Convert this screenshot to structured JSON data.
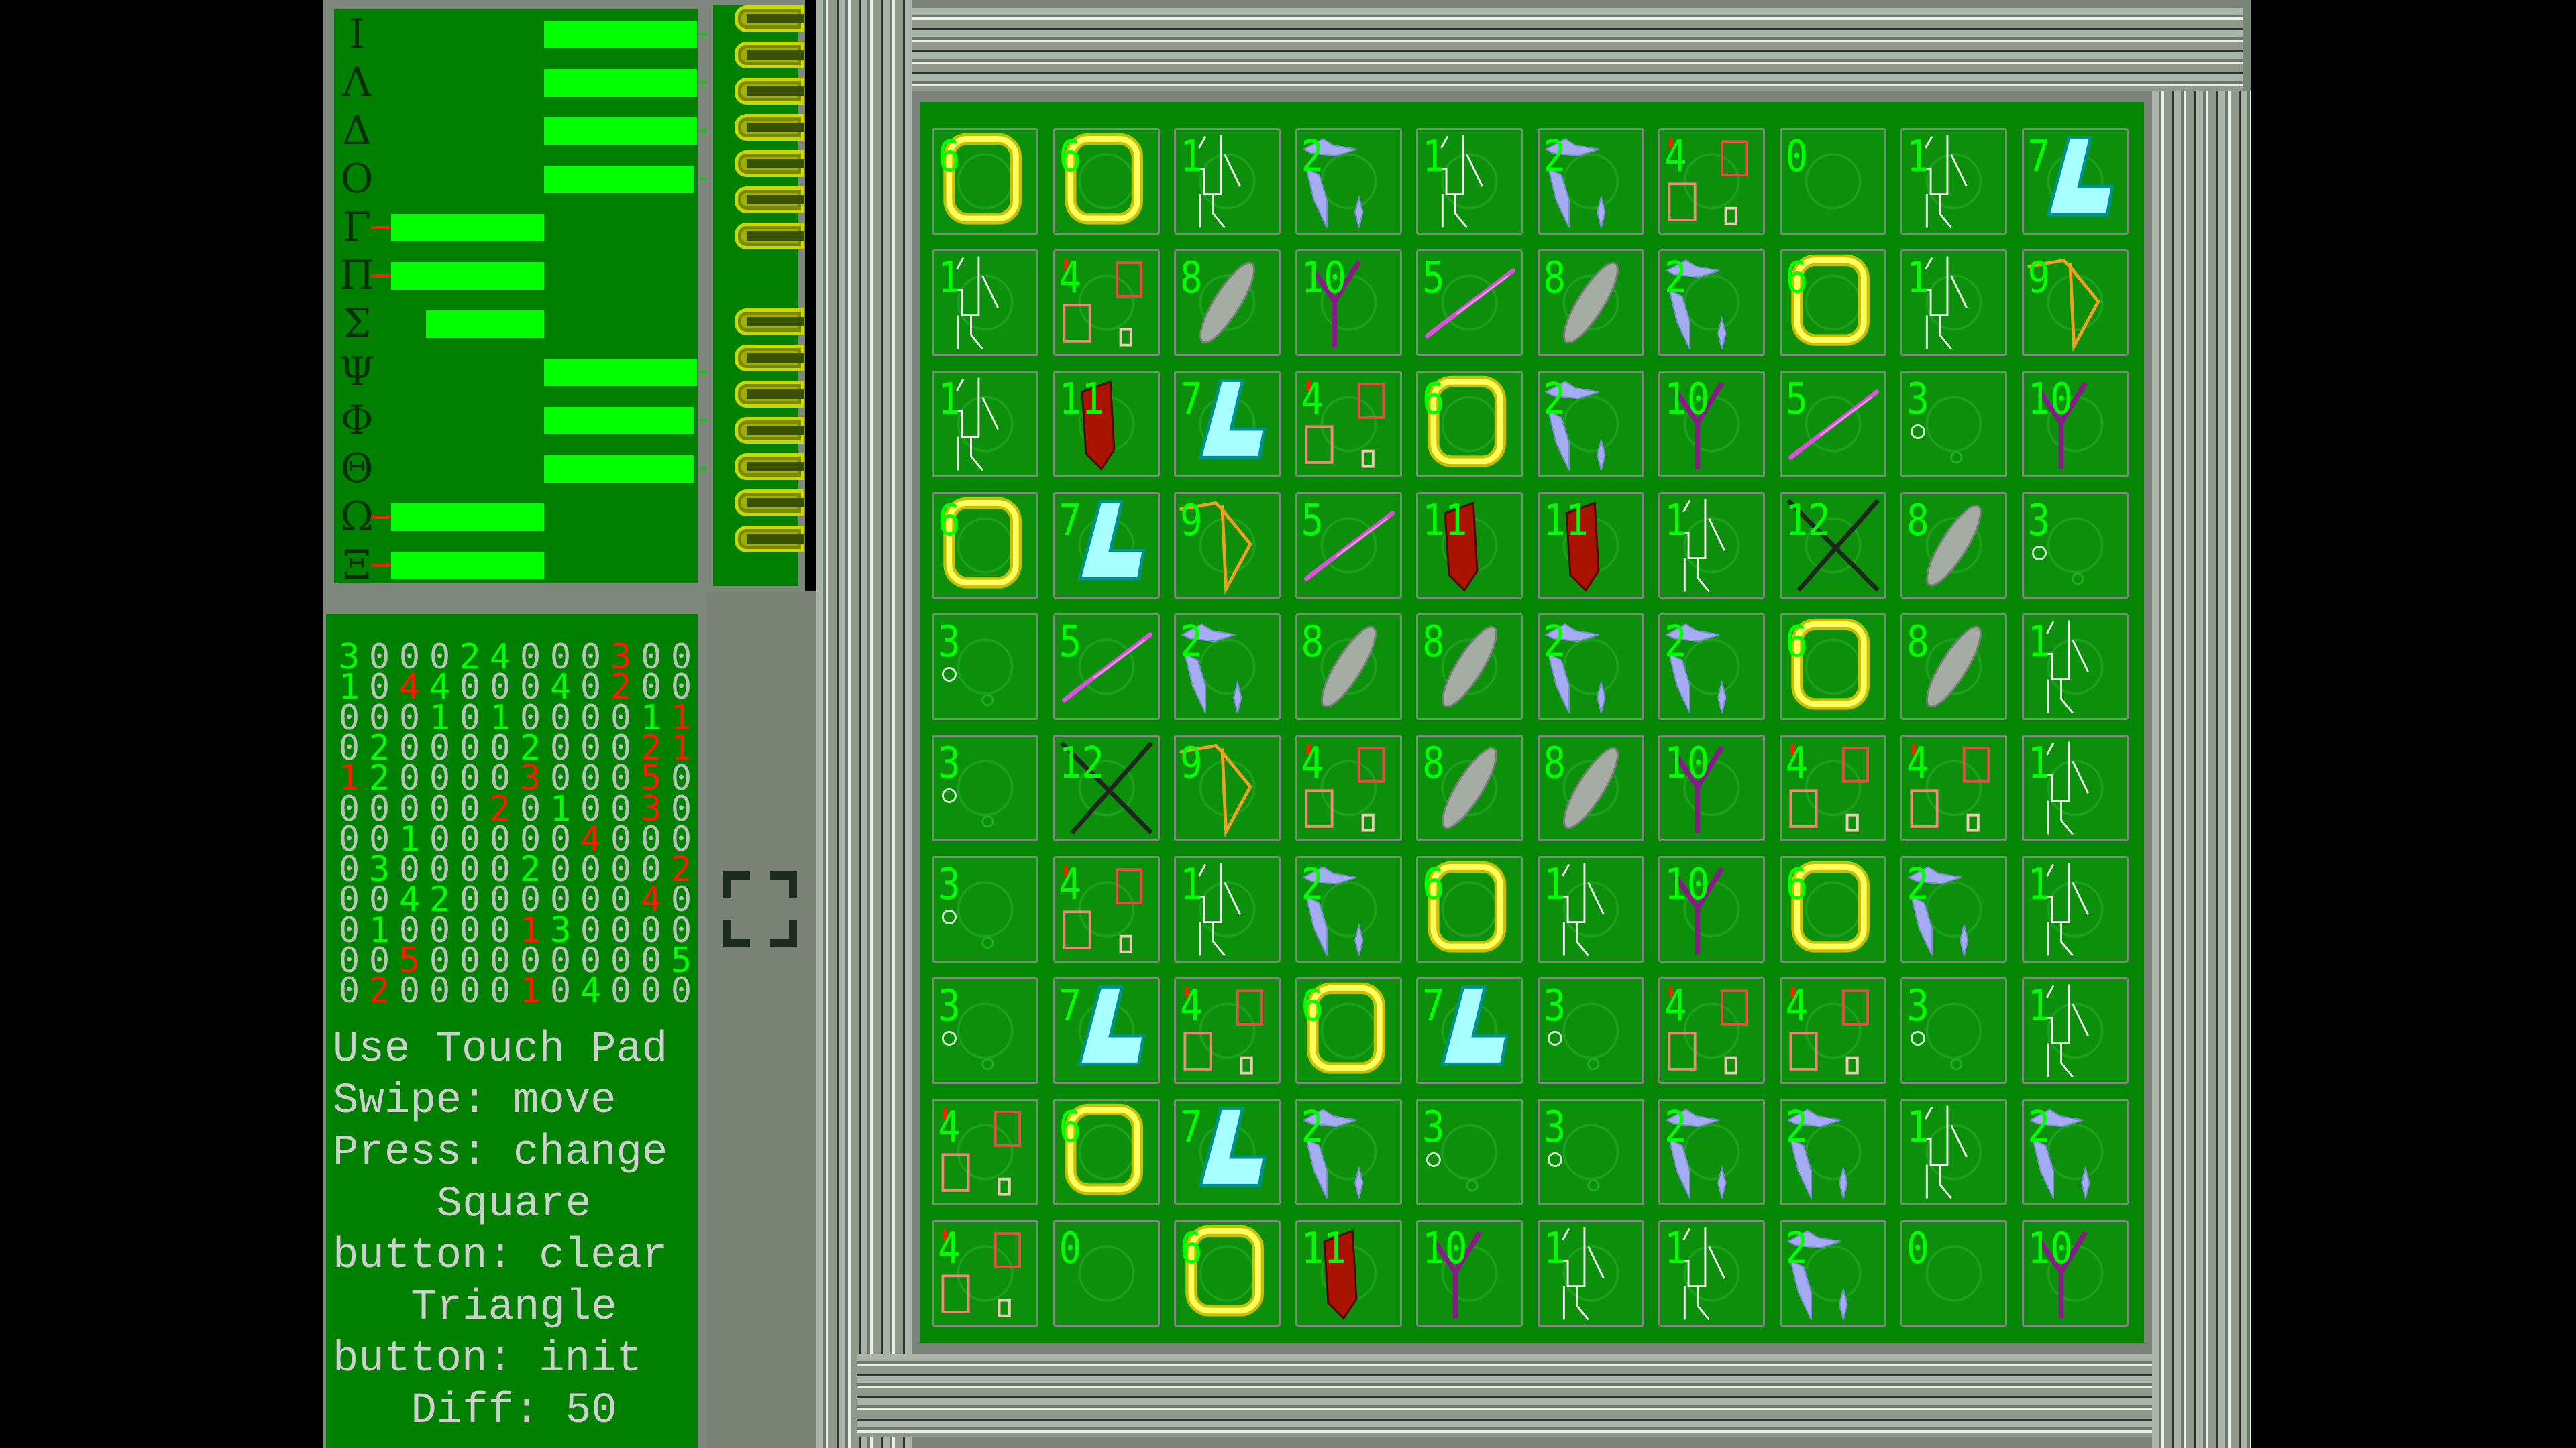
{
  "stats_panel": {
    "rows": [
      {
        "label": "Ι",
        "level": 1.0,
        "indicator": "plus"
      },
      {
        "label": "Λ",
        "level": 1.0,
        "indicator": "plus"
      },
      {
        "label": "Δ",
        "level": 1.0,
        "indicator": "plus"
      },
      {
        "label": "Ο",
        "level": 0.98,
        "indicator": "plus"
      },
      {
        "label": "Γ",
        "level": -1.0,
        "indicator": "minus"
      },
      {
        "label": "Π",
        "level": -1.0,
        "indicator": "minus"
      },
      {
        "label": "Σ",
        "level": -0.77,
        "indicator": "none"
      },
      {
        "label": "Ψ",
        "level": 1.0,
        "indicator": "plus"
      },
      {
        "label": "Φ",
        "level": 0.98,
        "indicator": "plus"
      },
      {
        "label": "Θ",
        "level": 0.98,
        "indicator": "plus"
      },
      {
        "label": "Ω",
        "level": -1.0,
        "indicator": "minus"
      },
      {
        "label": "Ξ",
        "level": -1.0,
        "indicator": "minus"
      }
    ]
  },
  "slot_column": {
    "groups": [
      7,
      7
    ]
  },
  "counts_grid": {
    "values": [
      [
        3,
        0,
        0,
        0,
        2,
        4,
        0,
        0,
        0,
        3,
        0,
        0
      ],
      [
        1,
        0,
        4,
        4,
        0,
        0,
        0,
        4,
        0,
        2,
        0,
        0
      ],
      [
        0,
        0,
        0,
        1,
        0,
        1,
        0,
        0,
        0,
        0,
        1,
        1
      ],
      [
        0,
        2,
        0,
        0,
        0,
        0,
        2,
        0,
        0,
        0,
        2,
        1
      ],
      [
        1,
        2,
        0,
        0,
        0,
        0,
        3,
        0,
        0,
        0,
        5,
        0
      ],
      [
        0,
        0,
        0,
        0,
        0,
        2,
        0,
        1,
        0,
        0,
        3,
        0
      ],
      [
        0,
        0,
        1,
        0,
        0,
        0,
        0,
        0,
        4,
        0,
        0,
        0
      ],
      [
        0,
        3,
        0,
        0,
        0,
        0,
        2,
        0,
        0,
        0,
        0,
        2
      ],
      [
        0,
        0,
        4,
        2,
        0,
        0,
        0,
        0,
        0,
        0,
        4,
        0
      ],
      [
        0,
        1,
        0,
        0,
        0,
        0,
        1,
        3,
        0,
        0,
        0,
        0
      ],
      [
        0,
        0,
        5,
        0,
        0,
        0,
        0,
        0,
        0,
        0,
        0,
        5
      ],
      [
        0,
        2,
        0,
        0,
        0,
        0,
        1,
        0,
        4,
        0,
        0,
        0
      ]
    ],
    "colors": [
      [
        "green",
        "gray",
        "gray",
        "gray",
        "green",
        "green",
        "gray",
        "gray",
        "gray",
        "red",
        "gray",
        "gray"
      ],
      [
        "green",
        "gray",
        "red",
        "green",
        "gray",
        "gray",
        "gray",
        "green",
        "gray",
        "red",
        "gray",
        "gray"
      ],
      [
        "gray",
        "gray",
        "gray",
        "green",
        "gray",
        "green",
        "gray",
        "gray",
        "gray",
        "gray",
        "green",
        "red"
      ],
      [
        "gray",
        "green",
        "gray",
        "gray",
        "gray",
        "gray",
        "green",
        "gray",
        "gray",
        "gray",
        "red",
        "red"
      ],
      [
        "red",
        "green",
        "gray",
        "gray",
        "gray",
        "gray",
        "red",
        "gray",
        "gray",
        "gray",
        "red",
        "gray"
      ],
      [
        "gray",
        "gray",
        "gray",
        "gray",
        "gray",
        "red",
        "gray",
        "green",
        "gray",
        "gray",
        "red",
        "gray"
      ],
      [
        "gray",
        "gray",
        "green",
        "gray",
        "gray",
        "gray",
        "gray",
        "gray",
        "red",
        "gray",
        "gray",
        "gray"
      ],
      [
        "gray",
        "green",
        "gray",
        "gray",
        "gray",
        "gray",
        "green",
        "gray",
        "gray",
        "gray",
        "gray",
        "red"
      ],
      [
        "gray",
        "gray",
        "green",
        "green",
        "gray",
        "gray",
        "gray",
        "gray",
        "gray",
        "gray",
        "red",
        "gray"
      ],
      [
        "gray",
        "green",
        "gray",
        "gray",
        "gray",
        "gray",
        "red",
        "green",
        "gray",
        "gray",
        "gray",
        "gray"
      ],
      [
        "gray",
        "gray",
        "red",
        "gray",
        "gray",
        "gray",
        "gray",
        "gray",
        "gray",
        "gray",
        "gray",
        "green"
      ],
      [
        "gray",
        "red",
        "gray",
        "gray",
        "gray",
        "gray",
        "red",
        "gray",
        "green",
        "gray",
        "gray",
        "gray"
      ]
    ]
  },
  "instructions": {
    "lines": [
      {
        "text": "Use Touch Pad",
        "align": "left"
      },
      {
        "text": "Swipe: move",
        "align": "left"
      },
      {
        "text": "Press: change",
        "align": "left"
      },
      {
        "text": "Square",
        "align": "center"
      },
      {
        "text": "button: clear",
        "align": "left"
      },
      {
        "text": "Triangle",
        "align": "center"
      },
      {
        "text": "button: init",
        "align": "left"
      },
      {
        "text": "Diff: 50",
        "align": "center"
      }
    ]
  },
  "board": {
    "tiles": [
      [
        6,
        6,
        1,
        2,
        1,
        2,
        4,
        0,
        1,
        7
      ],
      [
        1,
        4,
        8,
        10,
        5,
        8,
        2,
        6,
        1,
        9
      ],
      [
        1,
        11,
        7,
        4,
        6,
        2,
        10,
        5,
        3,
        10
      ],
      [
        6,
        7,
        9,
        5,
        11,
        11,
        1,
        12,
        8,
        3
      ],
      [
        3,
        5,
        2,
        8,
        8,
        2,
        2,
        6,
        8,
        1
      ],
      [
        3,
        12,
        9,
        4,
        8,
        8,
        10,
        4,
        4,
        1
      ],
      [
        3,
        4,
        1,
        2,
        6,
        1,
        10,
        6,
        2,
        1
      ],
      [
        3,
        7,
        4,
        6,
        7,
        3,
        4,
        4,
        3,
        1
      ],
      [
        4,
        6,
        7,
        2,
        3,
        3,
        2,
        2,
        1,
        2
      ],
      [
        4,
        0,
        6,
        11,
        10,
        1,
        1,
        2,
        0,
        10
      ]
    ],
    "tile_icons": {
      "0": "empty-icon",
      "1": "circuit-icon",
      "2": "crystal-icon",
      "3": "bubbles-icon",
      "4": "squares-icon",
      "5": "beam-icon",
      "6": "ring-icon",
      "7": "l-block-icon",
      "8": "leaf-icon",
      "9": "triangle-icon",
      "10": "fork-icon",
      "11": "red-block-icon",
      "12": "cross-icon"
    }
  },
  "colors": {
    "panel_green": "#008000",
    "bar_green": "#00ff00",
    "number_green": "#00ff00",
    "number_red": "#ff1a00",
    "number_gray": "#b8c4b8",
    "frame_gray": "#7a8478"
  },
  "fullscreen_button": {
    "icon": "fullscreen-icon"
  }
}
